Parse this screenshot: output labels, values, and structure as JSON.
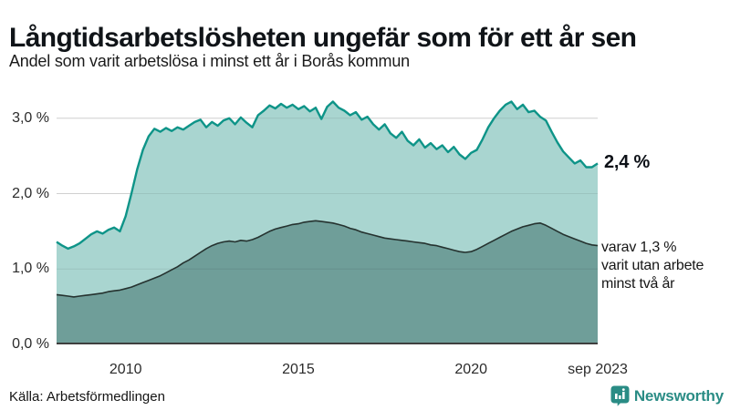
{
  "chart_data": {
    "type": "area",
    "title": "Långtidsarbetslösheten ungefär som för ett år sen",
    "subtitle": "Andel som varit arbetslösa i minst ett år i Borås kommun",
    "x_start": 2008.0,
    "x_step_months": 2,
    "xlim": [
      2008.0,
      2023.667
    ],
    "ylim": [
      0,
      3.42
    ],
    "grid": true,
    "legend": "none",
    "yticks": [
      {
        "v": 0,
        "label": "0,0 %"
      },
      {
        "v": 1,
        "label": "1,0 %"
      },
      {
        "v": 2,
        "label": "2,0 %"
      },
      {
        "v": 3,
        "label": "3,0 %"
      }
    ],
    "xticks": [
      {
        "v": 2010,
        "label": "2010"
      },
      {
        "v": 2015,
        "label": "2015"
      },
      {
        "v": 2020,
        "label": "2020"
      },
      {
        "v": 2023.667,
        "label": "sep 2023"
      }
    ],
    "series": [
      {
        "name": "Arbetslösa minst ett år",
        "line_color": "#0e9488",
        "fill_color": "#a9d5d0",
        "values": [
          1.36,
          1.31,
          1.27,
          1.3,
          1.34,
          1.4,
          1.46,
          1.5,
          1.47,
          1.52,
          1.55,
          1.5,
          1.7,
          2.0,
          2.32,
          2.58,
          2.76,
          2.86,
          2.82,
          2.87,
          2.83,
          2.88,
          2.85,
          2.9,
          2.95,
          2.98,
          2.88,
          2.95,
          2.9,
          2.97,
          3.0,
          2.92,
          3.01,
          2.94,
          2.88,
          3.04,
          3.1,
          3.17,
          3.13,
          3.19,
          3.14,
          3.18,
          3.12,
          3.16,
          3.09,
          3.14,
          2.99,
          3.15,
          3.22,
          3.14,
          3.1,
          3.04,
          3.08,
          2.98,
          3.02,
          2.92,
          2.85,
          2.92,
          2.8,
          2.74,
          2.82,
          2.7,
          2.64,
          2.72,
          2.61,
          2.67,
          2.59,
          2.64,
          2.55,
          2.62,
          2.52,
          2.46,
          2.54,
          2.58,
          2.72,
          2.88,
          3.0,
          3.1,
          3.18,
          3.22,
          3.12,
          3.18,
          3.08,
          3.1,
          3.02,
          2.97,
          2.82,
          2.68,
          2.56,
          2.48,
          2.4,
          2.44,
          2.35,
          2.35,
          2.4
        ]
      },
      {
        "name": "Arbetslösa minst två år",
        "line_color": "#25322f",
        "fill_color": "#6f9e99",
        "values": [
          0.66,
          0.65,
          0.64,
          0.63,
          0.64,
          0.65,
          0.66,
          0.67,
          0.68,
          0.7,
          0.71,
          0.72,
          0.74,
          0.76,
          0.79,
          0.82,
          0.85,
          0.88,
          0.91,
          0.95,
          0.99,
          1.03,
          1.08,
          1.12,
          1.17,
          1.22,
          1.27,
          1.31,
          1.34,
          1.36,
          1.37,
          1.36,
          1.38,
          1.37,
          1.39,
          1.42,
          1.46,
          1.5,
          1.53,
          1.55,
          1.57,
          1.59,
          1.6,
          1.62,
          1.63,
          1.64,
          1.63,
          1.62,
          1.61,
          1.59,
          1.57,
          1.54,
          1.52,
          1.49,
          1.47,
          1.45,
          1.43,
          1.41,
          1.4,
          1.39,
          1.38,
          1.37,
          1.36,
          1.35,
          1.34,
          1.32,
          1.31,
          1.29,
          1.27,
          1.25,
          1.23,
          1.22,
          1.23,
          1.26,
          1.3,
          1.34,
          1.38,
          1.42,
          1.46,
          1.5,
          1.53,
          1.56,
          1.58,
          1.6,
          1.61,
          1.58,
          1.54,
          1.5,
          1.46,
          1.43,
          1.4,
          1.37,
          1.34,
          1.32,
          1.31
        ]
      }
    ]
  },
  "annotations": {
    "latest": {
      "label": "2,4 %",
      "value": 2.4
    },
    "note": {
      "lines": [
        "varav 1,3 %",
        "varit utan arbete",
        "minst två år"
      ],
      "value": 1.3
    }
  },
  "source": "Källa: Arbetsförmedlingen",
  "branding": {
    "name": "Newsworthy",
    "color": "#2a8c85"
  },
  "colors": {
    "gridline": "#e2e2e2",
    "gridline_overlay": "rgba(0,0,0,0.08)",
    "baseline": "#3f3f3f",
    "text": "#111111"
  }
}
